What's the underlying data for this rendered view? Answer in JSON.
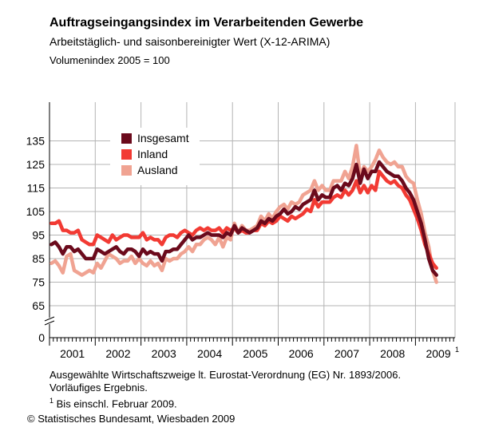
{
  "header": {
    "title": "Auftragseingangsindex im Verarbeitenden Gewerbe",
    "subtitle": "Arbeitstäglich- und saisonbereinigter Wert (X-12-ARIMA)",
    "unit": "Volumenindex 2005 = 100"
  },
  "chart_data": {
    "type": "line",
    "y_ticks": [
      0,
      65,
      75,
      85,
      95,
      105,
      115,
      125,
      135
    ],
    "y_axis_break": true,
    "x_labels": [
      "2001",
      "2002",
      "2003",
      "2004",
      "2005",
      "2006",
      "2007",
      "2008",
      "2009"
    ],
    "x_label_footnote": "1",
    "grid": true,
    "legend_position": "top-left",
    "x_start": "2001-01",
    "series": [
      {
        "name": "Insgesamt",
        "color": "#6b0a1c",
        "values": [
          91,
          92,
          90,
          87,
          90,
          90,
          88,
          89,
          87,
          85,
          85,
          85,
          89,
          88,
          87,
          88,
          89,
          90,
          88,
          87,
          89,
          89,
          88,
          86,
          89,
          87,
          88,
          87,
          87,
          84,
          88,
          88,
          89,
          89,
          91,
          93,
          95,
          93,
          94,
          94,
          95,
          96,
          95,
          95,
          95,
          94,
          96,
          95,
          99,
          96,
          98,
          97,
          96,
          97,
          98,
          101,
          100,
          102,
          101,
          103,
          104,
          106,
          104,
          105,
          107,
          106,
          108,
          109,
          110,
          114,
          110,
          112,
          111,
          111,
          115,
          116,
          114,
          117,
          116,
          119,
          125,
          117,
          123,
          119,
          122,
          122,
          126,
          124,
          122,
          121,
          120,
          120,
          118,
          115,
          113,
          110,
          105,
          100,
          93,
          85,
          80,
          78
        ]
      },
      {
        "name": "Inland",
        "color": "#f23a33",
        "values": [
          100,
          100,
          101,
          97,
          97,
          96,
          96,
          97,
          93,
          92,
          91,
          91,
          95,
          94,
          93,
          92,
          95,
          93,
          94,
          95,
          95,
          94,
          94,
          94,
          96,
          93,
          94,
          93,
          93,
          91,
          94,
          95,
          95,
          94,
          96,
          97,
          96,
          95,
          97,
          98,
          97,
          98,
          97,
          97,
          98,
          96,
          98,
          97,
          98,
          96,
          97,
          96,
          96,
          97,
          97,
          100,
          99,
          101,
          100,
          101,
          103,
          102,
          101,
          103,
          102,
          103,
          104,
          106,
          105,
          110,
          107,
          109,
          109,
          109,
          111,
          112,
          111,
          114,
          112,
          114,
          118,
          113,
          116,
          113,
          116,
          114,
          122,
          120,
          118,
          117,
          118,
          116,
          115,
          112,
          110,
          106,
          102,
          97,
          91,
          87,
          83,
          81
        ]
      },
      {
        "name": "Ausland",
        "color": "#f0a392",
        "values": [
          83,
          84,
          82,
          79,
          86,
          87,
          80,
          79,
          78,
          79,
          80,
          79,
          83,
          81,
          84,
          87,
          86,
          85,
          83,
          84,
          84,
          86,
          83,
          85,
          83,
          82,
          84,
          82,
          83,
          80,
          85,
          84,
          85,
          85,
          87,
          88,
          90,
          88,
          91,
          91,
          93,
          94,
          93,
          91,
          94,
          90,
          94,
          93,
          100,
          96,
          99,
          97,
          97,
          98,
          99,
          103,
          101,
          104,
          102,
          105,
          107,
          108,
          106,
          109,
          108,
          109,
          112,
          113,
          114,
          118,
          114,
          116,
          114,
          114,
          118,
          118,
          118,
          122,
          119,
          124,
          133,
          120,
          124,
          122,
          124,
          127,
          131,
          128,
          126,
          125,
          126,
          124,
          124,
          120,
          118,
          117,
          110,
          104,
          96,
          90,
          80,
          75
        ]
      }
    ]
  },
  "notes": {
    "line1": "Ausgewählte Wirtschaftszweige lt. Eurostat-Verordnung (EG) Nr. 1893/2006.",
    "line2": "Vorläufiges Ergebnis.",
    "footnote_mark": "1",
    "footnote_text": "Bis einschl. Februar 2009."
  },
  "copyright": "© Statistisches Bundesamt, Wiesbaden 2009"
}
